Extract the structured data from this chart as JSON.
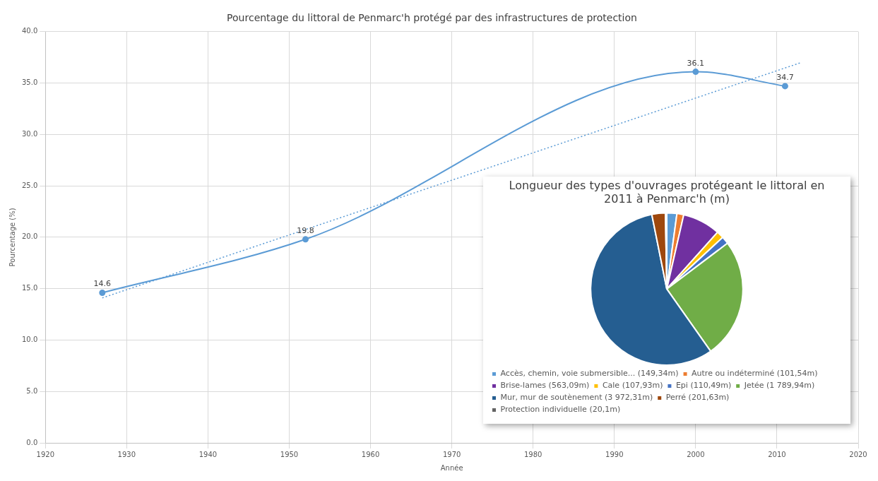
{
  "chart_data": [
    {
      "type": "line",
      "title": "Pourcentage du littoral de Penmarc'h protégé par des infrastructures de protection",
      "xlabel": "Année",
      "ylabel": "Pourcentage (%)",
      "xlim": [
        1920,
        2020
      ],
      "xticks": [
        1920,
        1930,
        1940,
        1950,
        1960,
        1970,
        1980,
        1990,
        2000,
        2010,
        2020
      ],
      "ylim": [
        0,
        40
      ],
      "yticks": [
        {
          "value": 0,
          "label": "0.0"
        },
        {
          "value": 5,
          "label": "5.0"
        },
        {
          "value": 10,
          "label": "10.0"
        },
        {
          "value": 15,
          "label": "15.0"
        },
        {
          "value": 20,
          "label": "20.0"
        },
        {
          "value": 25,
          "label": "25.0"
        },
        {
          "value": 30,
          "label": "30.0"
        },
        {
          "value": 35,
          "label": "35.0"
        },
        {
          "value": 40,
          "label": "40.0"
        }
      ],
      "grid": true,
      "legend": false,
      "series": [
        {
          "type": "line",
          "color": "#5b9bd5",
          "x": [
            1927,
            1952,
            2000,
            2011
          ],
          "values": [
            14.6,
            19.8,
            36.1,
            34.7
          ],
          "value_labels": [
            "14.6",
            "19.8",
            "36.1",
            "34.7"
          ],
          "marker": "circle",
          "line_style": "solid"
        },
        {
          "type": "line",
          "color": "#5b9bd5",
          "x": [
            1927,
            2013
          ],
          "values": [
            14.1,
            37.0
          ],
          "marker": "none",
          "line_style": "dotted"
        }
      ]
    },
    {
      "type": "pie",
      "title": "Longueur des types d'ouvrages protégeant le littoral en 2011 à Penmarc'h (m)",
      "legend": "bottom",
      "categories": [
        "Accès, chemin, voie submersible... (149,34m)",
        "Autre ou indéterminé (101,54m)",
        "Brise-lames (563,09m)",
        "Cale (107,93m)",
        "Epi (110,49m)",
        "Jetée (1 789,94m)",
        "Mur, mur de soutènement (3 972,31m)",
        "Perré (201,63m)",
        "Protection individuelle (20,1m)"
      ],
      "values": [
        149.34,
        101.54,
        563.09,
        107.93,
        110.49,
        1789.94,
        3972.31,
        201.63,
        20.1
      ],
      "colors": [
        "#5b9bd5",
        "#ed7d31",
        "#7030a0",
        "#ffc000",
        "#4472c4",
        "#70ad47",
        "#255e91",
        "#9e480e",
        "#636363"
      ]
    }
  ]
}
